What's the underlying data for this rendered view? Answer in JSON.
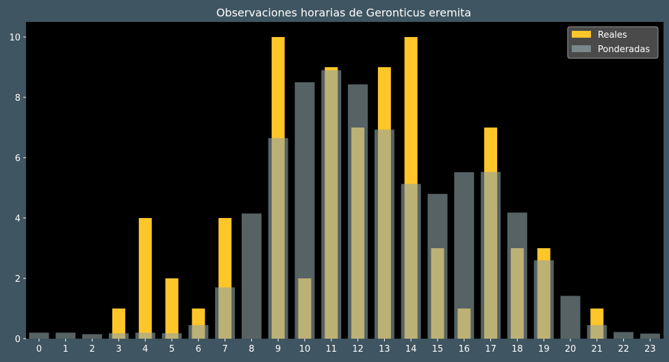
{
  "colors": {
    "page_background": "#3f5561",
    "plot_background": "#000000",
    "reales": "#ffc629",
    "ponderadas": "#8fa3a6",
    "text": "#ffffff",
    "legend_background": "#4a4a4a"
  },
  "chart_data": {
    "type": "bar",
    "title": "Observaciones horarias de Geronticus eremita",
    "xlabel": "",
    "ylabel": "",
    "categories": [
      "0",
      "1",
      "2",
      "3",
      "4",
      "5",
      "6",
      "7",
      "8",
      "9",
      "10",
      "11",
      "12",
      "13",
      "14",
      "15",
      "16",
      "17",
      "18",
      "19",
      "20",
      "21",
      "22",
      "23"
    ],
    "ylim": [
      0,
      10.5
    ],
    "yticks": [
      0,
      2,
      4,
      6,
      8,
      10
    ],
    "grid": false,
    "legend_position": "top-right",
    "series": [
      {
        "name": "Reales",
        "values": [
          0,
          0,
          0,
          1,
          4,
          2,
          1,
          4,
          0,
          10,
          2,
          9,
          7,
          9,
          10,
          3,
          1,
          7,
          3,
          3,
          0,
          1,
          0,
          0
        ]
      },
      {
        "name": "Ponderadas",
        "values": [
          0.2,
          0.2,
          0.15,
          0.18,
          0.2,
          0.18,
          0.45,
          1.7,
          4.15,
          6.65,
          8.5,
          8.9,
          8.43,
          6.93,
          5.13,
          4.8,
          5.52,
          5.53,
          4.18,
          2.6,
          1.42,
          0.45,
          0.22,
          0.17
        ]
      }
    ]
  }
}
